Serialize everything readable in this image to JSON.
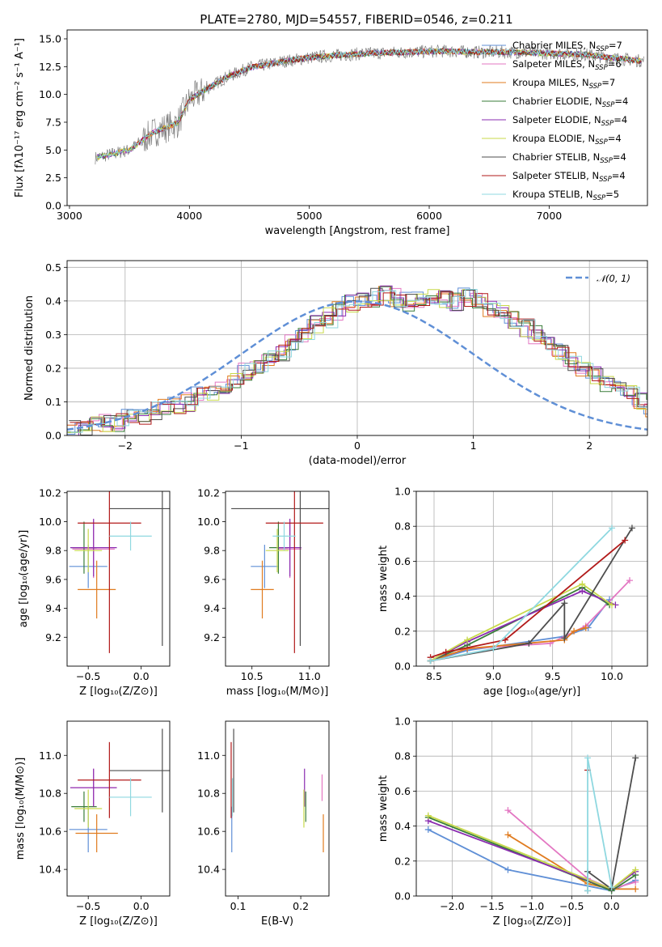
{
  "title": "PLATE=2780, MJD=54557, FIBERID=0546, z=0.211",
  "colors": {
    "Chabrier MILES": "#5f8fd6",
    "Salpeter MILES": "#e377c2",
    "Kroupa MILES": "#e07b1f",
    "Chabrier ELODIE": "#3a7d3a",
    "Salpeter ELODIE": "#8a2bb0",
    "Kroupa ELODIE": "#c8d94a",
    "Chabrier STELIB": "#4d4d4d",
    "Salpeter STELIB": "#b21a1a",
    "Kroupa STELIB": "#8fd8e0",
    "normal_curve": "#5f8fd6",
    "data_spectrum": "#808080"
  },
  "chart_data": [
    {
      "id": "spectrum",
      "type": "line",
      "xlabel": "wavelength [Angstrom, rest frame]",
      "ylabel": "Flux [fλ10⁻¹⁷ erg cm⁻² s⁻¹ A⁻¹]",
      "xlim": [
        2980,
        7820
      ],
      "ylim": [
        0,
        15.8
      ],
      "xticks": [
        "3000",
        "4000",
        "5000",
        "6000",
        "7000"
      ],
      "yticks": [
        "0.0",
        "2.5",
        "5.0",
        "7.5",
        "10.0",
        "12.5",
        "15.0"
      ],
      "grid": false,
      "legend_position": "right",
      "x_range": [
        3215,
        7790
      ],
      "continuum_x": [
        3215,
        3500,
        3700,
        3900,
        4000,
        4100,
        4300,
        4500,
        4800,
        5000,
        5200,
        5500,
        5800,
        6100,
        6400,
        6700,
        7000,
        7300,
        7500,
        7790
      ],
      "continuum_y": [
        4.3,
        5.0,
        6.6,
        7.4,
        9.5,
        10.2,
        11.5,
        12.4,
        13.0,
        13.3,
        13.5,
        13.7,
        13.8,
        13.9,
        13.8,
        13.8,
        13.7,
        13.6,
        13.3,
        13.0
      ],
      "series": [
        {
          "name": "Chabrier MILES",
          "nssp": "7"
        },
        {
          "name": "Salpeter MILES",
          "nssp": "6"
        },
        {
          "name": "Kroupa MILES",
          "nssp": "7"
        },
        {
          "name": "Chabrier ELODIE",
          "nssp": "4"
        },
        {
          "name": "Salpeter ELODIE",
          "nssp": "4"
        },
        {
          "name": "Kroupa ELODIE",
          "nssp": "4"
        },
        {
          "name": "Chabrier STELIB",
          "nssp": "4"
        },
        {
          "name": "Salpeter STELIB",
          "nssp": "4"
        },
        {
          "name": "Kroupa STELIB",
          "nssp": "5"
        }
      ]
    },
    {
      "id": "residuals",
      "type": "line",
      "xlabel": "(data-model)/error",
      "ylabel": "Normed distribution",
      "xlim": [
        -2.5,
        2.5
      ],
      "ylim": [
        0,
        0.52
      ],
      "xticks": [
        "−2",
        "−1",
        "0",
        "1",
        "2"
      ],
      "yticks": [
        "0.0",
        "0.1",
        "0.2",
        "0.3",
        "0.4",
        "0.5"
      ],
      "grid": true,
      "legend_position": "top-right",
      "legend_label": "𝒩(0, 1)",
      "bin_width": 0.1,
      "bin_start": -2.5,
      "histogram": [
        0.02,
        0.025,
        0.03,
        0.035,
        0.04,
        0.05,
        0.06,
        0.07,
        0.08,
        0.09,
        0.1,
        0.115,
        0.13,
        0.15,
        0.17,
        0.19,
        0.21,
        0.23,
        0.25,
        0.27,
        0.3,
        0.33,
        0.35,
        0.37,
        0.39,
        0.41,
        0.41,
        0.42,
        0.41,
        0.4,
        0.41,
        0.42,
        0.41,
        0.4,
        0.41,
        0.4,
        0.38,
        0.36,
        0.34,
        0.32,
        0.3,
        0.28,
        0.25,
        0.22,
        0.2,
        0.18,
        0.16,
        0.14,
        0.12,
        0.1,
        0.085,
        0.075,
        0.07,
        0.06,
        0.05,
        0.04,
        0.035,
        0.03,
        0.025,
        0.02
      ]
    },
    {
      "id": "age-vs-Z",
      "type": "scatter",
      "xlabel": "Z [log₁₀(Z/Z⊙)]",
      "ylabel": "age  [log₁₀(age/yr)]",
      "xlim": [
        -0.7,
        0.27
      ],
      "ylim": [
        9.0,
        10.21
      ],
      "xticks": [
        "−0.5",
        "0.0"
      ],
      "yticks": [
        "9.2",
        "9.4",
        "9.6",
        "9.8",
        "10.0",
        "10.2"
      ],
      "points": [
        {
          "series": "Chabrier MILES",
          "x": -0.5,
          "y": 9.69,
          "xerr": 0.18,
          "yerr": 0.15
        },
        {
          "series": "Salpeter MILES",
          "x": -0.45,
          "y": 9.81,
          "xerr": 0.2,
          "yerr": 0.2
        },
        {
          "series": "Kroupa MILES",
          "x": -0.42,
          "y": 9.53,
          "xerr": 0.18,
          "yerr": 0.2
        },
        {
          "series": "Chabrier ELODIE",
          "x": -0.54,
          "y": 9.82,
          "xerr": 0.12,
          "yerr": 0.18
        },
        {
          "series": "Salpeter ELODIE",
          "x": -0.45,
          "y": 9.82,
          "xerr": 0.22,
          "yerr": 0.2
        },
        {
          "series": "Kroupa ELODIE",
          "x": -0.5,
          "y": 9.8,
          "xerr": 0.13,
          "yerr": 0.15
        },
        {
          "series": "Chabrier STELIB",
          "x": 0.2,
          "y": 10.09,
          "xerr": 0.5,
          "yerr": 0.95
        },
        {
          "series": "Salpeter STELIB",
          "x": -0.3,
          "y": 9.99,
          "xerr": 0.3,
          "yerr": 0.9
        },
        {
          "series": "Kroupa STELIB",
          "x": -0.1,
          "y": 9.9,
          "xerr": 0.2,
          "yerr": 0.1
        }
      ]
    },
    {
      "id": "age-vs-mass",
      "type": "scatter",
      "xlabel": "mass [log₁₀(M/M⊙)]",
      "ylabel": "",
      "xlim": [
        10.27,
        11.17
      ],
      "ylim": [
        9.0,
        10.21
      ],
      "xticks": [
        "10.5",
        "11.0"
      ],
      "yticks": [
        "9.2",
        "9.4",
        "9.6",
        "9.8",
        "10.0",
        "10.2"
      ],
      "points": [
        {
          "series": "Chabrier MILES",
          "x": 10.61,
          "y": 9.69,
          "xerr": 0.12,
          "yerr": 0.15
        },
        {
          "series": "Salpeter MILES",
          "x": 10.83,
          "y": 9.81,
          "xerr": 0.1,
          "yerr": 0.2
        },
        {
          "series": "Kroupa MILES",
          "x": 10.59,
          "y": 9.53,
          "xerr": 0.1,
          "yerr": 0.2
        },
        {
          "series": "Chabrier ELODIE",
          "x": 10.73,
          "y": 9.82,
          "xerr": 0.08,
          "yerr": 0.18
        },
        {
          "series": "Salpeter ELODIE",
          "x": 10.83,
          "y": 9.82,
          "xerr": 0.1,
          "yerr": 0.2
        },
        {
          "series": "Kroupa ELODIE",
          "x": 10.72,
          "y": 9.8,
          "xerr": 0.1,
          "yerr": 0.15
        },
        {
          "series": "Chabrier STELIB",
          "x": 10.92,
          "y": 10.09,
          "xerr": 0.6,
          "yerr": 0.95
        },
        {
          "series": "Salpeter STELIB",
          "x": 10.87,
          "y": 9.99,
          "xerr": 0.25,
          "yerr": 0.9
        },
        {
          "series": "Kroupa STELIB",
          "x": 10.78,
          "y": 9.9,
          "xerr": 0.1,
          "yerr": 0.1
        }
      ]
    },
    {
      "id": "massweight-vs-age",
      "type": "line",
      "xlabel": "age  [log₁₀(age/yr)]",
      "ylabel": "mass weight",
      "xlim": [
        8.35,
        10.3
      ],
      "ylim": [
        0,
        1.0
      ],
      "xticks": [
        "8.5",
        "9.0",
        "9.5",
        "10.0"
      ],
      "yticks": [
        "0.0",
        "0.2",
        "0.4",
        "0.6",
        "0.8",
        "1.0"
      ],
      "grid": true,
      "series": [
        {
          "name": "Chabrier MILES",
          "x": [
            8.47,
            8.78,
            9.6,
            9.8,
            9.98
          ],
          "y": [
            0.03,
            0.09,
            0.17,
            0.22,
            0.38
          ]
        },
        {
          "name": "Salpeter MILES",
          "x": [
            8.47,
            8.78,
            9.48,
            9.78,
            10.15
          ],
          "y": [
            0.03,
            0.1,
            0.13,
            0.23,
            0.49
          ]
        },
        {
          "name": "Kroupa MILES",
          "x": [
            8.47,
            8.78,
            9.6,
            9.68,
            9.78
          ],
          "y": [
            0.03,
            0.1,
            0.15,
            0.2,
            0.22
          ]
        },
        {
          "name": "Chabrier ELODIE",
          "x": [
            8.47,
            8.78,
            9.75,
            9.98
          ],
          "y": [
            0.03,
            0.12,
            0.45,
            0.35
          ]
        },
        {
          "name": "Salpeter ELODIE",
          "x": [
            8.47,
            8.78,
            9.75,
            10.03
          ],
          "y": [
            0.03,
            0.14,
            0.43,
            0.35
          ]
        },
        {
          "name": "Kroupa ELODIE",
          "x": [
            8.47,
            8.78,
            9.75,
            10.0
          ],
          "y": [
            0.03,
            0.15,
            0.47,
            0.35
          ]
        },
        {
          "name": "Chabrier STELIB",
          "x": [
            8.47,
            9.3,
            9.6,
            9.6,
            10.17
          ],
          "y": [
            0.03,
            0.13,
            0.36,
            0.16,
            0.79
          ]
        },
        {
          "name": "Salpeter STELIB",
          "x": [
            8.47,
            8.6,
            9.1,
            10.11
          ],
          "y": [
            0.05,
            0.08,
            0.15,
            0.72
          ]
        },
        {
          "name": "Kroupa STELIB",
          "x": [
            8.47,
            9.0,
            10.0
          ],
          "y": [
            0.03,
            0.1,
            0.79
          ]
        }
      ]
    },
    {
      "id": "mass-vs-Z",
      "type": "scatter",
      "xlabel": "Z [log₁₀(Z/Z⊙)]",
      "ylabel": "mass [log₁₀(M/M⊙)]",
      "xlim": [
        -0.7,
        0.27
      ],
      "ylim": [
        10.26,
        11.18
      ],
      "xticks": [
        "−0.5",
        "0.0"
      ],
      "yticks": [
        "10.4",
        "10.6",
        "10.8",
        "11.0"
      ],
      "points": [
        {
          "series": "Chabrier MILES",
          "x": -0.5,
          "y": 10.61,
          "xerr": 0.18,
          "yerr": 0.12
        },
        {
          "series": "Salpeter MILES",
          "x": -0.45,
          "y": 10.83,
          "xerr": 0.22,
          "yerr": 0.1
        },
        {
          "series": "Kroupa MILES",
          "x": -0.42,
          "y": 10.59,
          "xerr": 0.2,
          "yerr": 0.1
        },
        {
          "series": "Chabrier ELODIE",
          "x": -0.54,
          "y": 10.73,
          "xerr": 0.12,
          "yerr": 0.08
        },
        {
          "series": "Salpeter ELODIE",
          "x": -0.45,
          "y": 10.83,
          "xerr": 0.22,
          "yerr": 0.1
        },
        {
          "series": "Kroupa ELODIE",
          "x": -0.5,
          "y": 10.72,
          "xerr": 0.13,
          "yerr": 0.1
        },
        {
          "series": "Chabrier STELIB",
          "x": 0.2,
          "y": 10.92,
          "xerr": 0.5,
          "yerr": 0.22
        },
        {
          "series": "Salpeter STELIB",
          "x": -0.3,
          "y": 10.87,
          "xerr": 0.3,
          "yerr": 0.2
        },
        {
          "series": "Kroupa STELIB",
          "x": -0.1,
          "y": 10.78,
          "xerr": 0.2,
          "yerr": 0.1
        }
      ]
    },
    {
      "id": "mass-vs-EBV",
      "type": "scatter",
      "xlabel": "E(B-V)",
      "ylabel": "",
      "xlim": [
        0.08,
        0.245
      ],
      "ylim": [
        10.26,
        11.18
      ],
      "xticks": [
        "0.1",
        "0.2"
      ],
      "yticks": [
        "10.4",
        "10.6",
        "10.8",
        "11.0"
      ],
      "points": [
        {
          "series": "Chabrier MILES",
          "x": 0.09,
          "y": 10.61,
          "xerr": 0,
          "yerr": 0.12
        },
        {
          "series": "Salpeter MILES",
          "x": 0.234,
          "y": 10.83,
          "xerr": 0,
          "yerr": 0.07
        },
        {
          "series": "Kroupa MILES",
          "x": 0.236,
          "y": 10.59,
          "xerr": 0,
          "yerr": 0.1
        },
        {
          "series": "Chabrier ELODIE",
          "x": 0.208,
          "y": 10.73,
          "xerr": 0,
          "yerr": 0.08
        },
        {
          "series": "Salpeter ELODIE",
          "x": 0.206,
          "y": 10.83,
          "xerr": 0,
          "yerr": 0.1
        },
        {
          "series": "Kroupa ELODIE",
          "x": 0.205,
          "y": 10.72,
          "xerr": 0,
          "yerr": 0.1
        },
        {
          "series": "Chabrier STELIB",
          "x": 0.093,
          "y": 10.92,
          "xerr": 0,
          "yerr": 0.22
        },
        {
          "series": "Salpeter STELIB",
          "x": 0.089,
          "y": 10.87,
          "xerr": 0,
          "yerr": 0.2
        },
        {
          "series": "Kroupa STELIB",
          "x": 0.091,
          "y": 10.78,
          "xerr": 0,
          "yerr": 0.1
        }
      ]
    },
    {
      "id": "massweight-vs-Z",
      "type": "line",
      "xlabel": "Z [log₁₀(Z/Z⊙)]",
      "ylabel": "mass weight",
      "xlim": [
        -2.45,
        0.45
      ],
      "ylim": [
        0,
        1.0
      ],
      "xticks": [
        "−2.0",
        "−1.5",
        "−1.0",
        "−0.5",
        "0.0"
      ],
      "yticks": [
        "0.0",
        "0.2",
        "0.4",
        "0.6",
        "0.8",
        "1.0"
      ],
      "grid": true,
      "series": [
        {
          "name": "Chabrier MILES",
          "x": [
            -2.3,
            -1.3,
            0.0,
            0.3
          ],
          "y": [
            0.38,
            0.15,
            0.03,
            0.09
          ]
        },
        {
          "name": "Salpeter MILES",
          "x": [
            -1.3,
            -0.3,
            0.0,
            0.3
          ],
          "y": [
            0.49,
            0.1,
            0.04,
            0.08
          ]
        },
        {
          "name": "Kroupa MILES",
          "x": [
            -1.3,
            -0.3,
            0.0,
            0.3
          ],
          "y": [
            0.35,
            0.07,
            0.04,
            0.04
          ]
        },
        {
          "name": "Chabrier ELODIE",
          "x": [
            -2.3,
            0.0,
            0.3
          ],
          "y": [
            0.45,
            0.03,
            0.12
          ]
        },
        {
          "name": "Salpeter ELODIE",
          "x": [
            -2.3,
            0.0,
            0.3
          ],
          "y": [
            0.43,
            0.04,
            0.14
          ]
        },
        {
          "name": "Kroupa ELODIE",
          "x": [
            -2.3,
            0.0,
            0.3
          ],
          "y": [
            0.46,
            0.04,
            0.15
          ]
        },
        {
          "name": "Chabrier STELIB",
          "x": [
            -0.3,
            -0.3,
            0.0,
            0.3
          ],
          "y": [
            0.03,
            0.14,
            0.04,
            0.79
          ]
        },
        {
          "name": "Salpeter STELIB",
          "x": [
            -0.3
          ],
          "y": [
            0.72
          ]
        },
        {
          "name": "Kroupa STELIB",
          "x": [
            -0.3,
            -0.3,
            0.0
          ],
          "y": [
            0.03,
            0.79,
            0.05
          ]
        }
      ]
    }
  ]
}
